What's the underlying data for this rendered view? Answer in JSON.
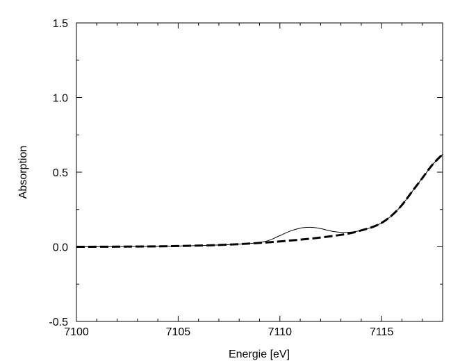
{
  "chart_data": {
    "type": "line",
    "title": "",
    "xlabel": "Energie [eV]",
    "ylabel": "Absorption",
    "xlim": [
      7100,
      7118
    ],
    "ylim": [
      -0.5,
      1.5
    ],
    "grid": false,
    "legend": "none",
    "x_ticks": [
      7100,
      7105,
      7110,
      7115
    ],
    "x_tick_labels": [
      "7100",
      "7105",
      "7110",
      "7115"
    ],
    "x_minor_ticks": [
      7101,
      7102,
      7103,
      7104,
      7106,
      7107,
      7108,
      7109,
      7111,
      7112,
      7113,
      7114,
      7116,
      7117
    ],
    "y_ticks": [
      -0.5,
      0.0,
      0.5,
      1.0,
      1.5
    ],
    "y_tick_labels": [
      "-0.5",
      "0.0",
      "0.5",
      "1.0",
      "1.5"
    ],
    "y_minor_ticks": [
      -0.25,
      0.25,
      0.75,
      1.25
    ],
    "series": [
      {
        "style": "solid-thin",
        "color": "#000000",
        "points": [
          [
            7100,
            0.0
          ],
          [
            7102,
            0.001
          ],
          [
            7104,
            0.003
          ],
          [
            7106,
            0.008
          ],
          [
            7107,
            0.012
          ],
          [
            7108,
            0.018
          ],
          [
            7108.5,
            0.022
          ],
          [
            7109,
            0.028
          ],
          [
            7109.5,
            0.045
          ],
          [
            7110,
            0.075
          ],
          [
            7110.5,
            0.105
          ],
          [
            7111,
            0.125
          ],
          [
            7111.3,
            0.13
          ],
          [
            7111.6,
            0.13
          ],
          [
            7112,
            0.122
          ],
          [
            7112.5,
            0.106
          ],
          [
            7113,
            0.097
          ],
          [
            7113.5,
            0.098
          ],
          [
            7114,
            0.11
          ],
          [
            7114.5,
            0.13
          ],
          [
            7115,
            0.16
          ],
          [
            7115.5,
            0.21
          ],
          [
            7116,
            0.28
          ],
          [
            7116.5,
            0.37
          ],
          [
            7117,
            0.46
          ],
          [
            7117.5,
            0.55
          ],
          [
            7118,
            0.62
          ]
        ]
      },
      {
        "style": "dashed-thick",
        "color": "#000000",
        "points": [
          [
            7100,
            0.0
          ],
          [
            7102,
            0.001
          ],
          [
            7104,
            0.003
          ],
          [
            7106,
            0.008
          ],
          [
            7107,
            0.012
          ],
          [
            7108,
            0.018
          ],
          [
            7109,
            0.026
          ],
          [
            7110,
            0.036
          ],
          [
            7111,
            0.048
          ],
          [
            7112,
            0.062
          ],
          [
            7113,
            0.08
          ],
          [
            7113.5,
            0.092
          ],
          [
            7114,
            0.11
          ],
          [
            7114.5,
            0.13
          ],
          [
            7115,
            0.16
          ],
          [
            7115.5,
            0.21
          ],
          [
            7116,
            0.28
          ],
          [
            7116.5,
            0.37
          ],
          [
            7117,
            0.46
          ],
          [
            7117.5,
            0.55
          ],
          [
            7118,
            0.62
          ]
        ]
      }
    ]
  }
}
